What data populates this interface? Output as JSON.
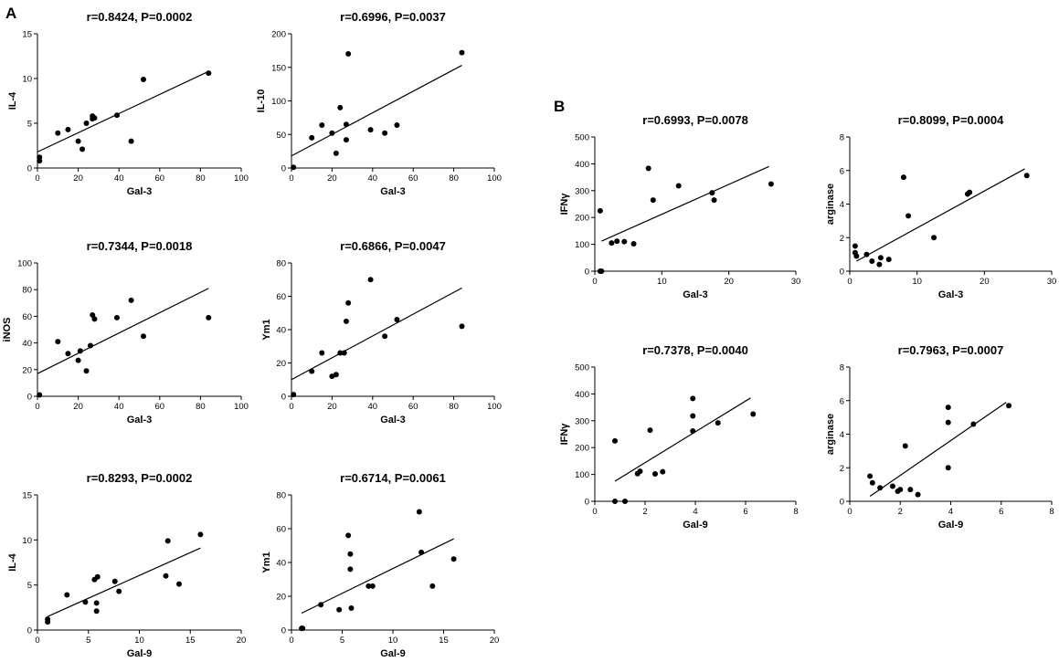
{
  "panels": [
    {
      "id": "panel-a",
      "letter": "A"
    },
    {
      "id": "panel-b",
      "letter": "B"
    }
  ],
  "chart_data": [
    {
      "id": "a1",
      "type": "scatter",
      "title": "r=0.8424, P=0.0002",
      "xlabel": "Gal-3",
      "ylabel": "IL-4",
      "xlim": [
        0,
        100
      ],
      "ylim": [
        0,
        15
      ],
      "xticks": [
        0,
        20,
        40,
        60,
        80,
        100
      ],
      "yticks": [
        0,
        5,
        10,
        15
      ],
      "points": [
        [
          1,
          1.2
        ],
        [
          1,
          0.8
        ],
        [
          10,
          3.9
        ],
        [
          15,
          4.3
        ],
        [
          20,
          3
        ],
        [
          22,
          2.1
        ],
        [
          24,
          5
        ],
        [
          27,
          5.5
        ],
        [
          27,
          5.8
        ],
        [
          28,
          5.6
        ],
        [
          39,
          5.9
        ],
        [
          46,
          3
        ],
        [
          52,
          9.9
        ],
        [
          84,
          10.6
        ]
      ],
      "fit": [
        [
          0,
          1.8
        ],
        [
          84,
          10.8
        ]
      ]
    },
    {
      "id": "a2",
      "type": "scatter",
      "title": "r=0.6996, P=0.0037",
      "xlabel": "Gal-3",
      "ylabel": "IL-10",
      "xlim": [
        0,
        100
      ],
      "ylim": [
        0,
        200
      ],
      "xticks": [
        0,
        20,
        40,
        60,
        80,
        100
      ],
      "yticks": [
        0,
        50,
        100,
        150,
        200
      ],
      "points": [
        [
          1,
          1
        ],
        [
          10,
          45
        ],
        [
          15,
          64
        ],
        [
          20,
          52
        ],
        [
          22,
          22
        ],
        [
          24,
          90
        ],
        [
          27,
          42
        ],
        [
          27,
          65
        ],
        [
          28,
          170
        ],
        [
          39,
          57
        ],
        [
          46,
          52
        ],
        [
          52,
          64
        ],
        [
          84,
          172
        ]
      ],
      "fit": [
        [
          0,
          18
        ],
        [
          84,
          153
        ]
      ]
    },
    {
      "id": "a3",
      "type": "scatter",
      "title": "r=0.7344, P=0.0018",
      "xlabel": "Gal-3",
      "ylabel": "iNOS",
      "xlim": [
        0,
        100
      ],
      "ylim": [
        0,
        100
      ],
      "xticks": [
        0,
        20,
        40,
        60,
        80,
        100
      ],
      "yticks": [
        0,
        20,
        40,
        60,
        80,
        100
      ],
      "points": [
        [
          1,
          1
        ],
        [
          10,
          41
        ],
        [
          15,
          32
        ],
        [
          20,
          27
        ],
        [
          21,
          34
        ],
        [
          24,
          19
        ],
        [
          26,
          38
        ],
        [
          27,
          61
        ],
        [
          28,
          58
        ],
        [
          39,
          59
        ],
        [
          46,
          72
        ],
        [
          52,
          45
        ],
        [
          84,
          59
        ]
      ],
      "fit": [
        [
          0,
          17
        ],
        [
          84,
          81
        ]
      ]
    },
    {
      "id": "a4",
      "type": "scatter",
      "title": "r=0.6866, P=0.0047",
      "xlabel": "Gal-3",
      "ylabel": "Ym1",
      "xlim": [
        0,
        100
      ],
      "ylim": [
        0,
        80
      ],
      "xticks": [
        0,
        20,
        40,
        60,
        80,
        100
      ],
      "yticks": [
        0,
        20,
        40,
        60,
        80
      ],
      "points": [
        [
          1,
          1
        ],
        [
          10,
          15
        ],
        [
          15,
          26
        ],
        [
          20,
          12
        ],
        [
          22,
          13
        ],
        [
          24,
          26
        ],
        [
          26,
          26
        ],
        [
          27,
          45
        ],
        [
          28,
          56
        ],
        [
          39,
          70
        ],
        [
          46,
          36
        ],
        [
          52,
          46
        ],
        [
          84,
          42
        ]
      ],
      "fit": [
        [
          0,
          10
        ],
        [
          84,
          65
        ]
      ]
    },
    {
      "id": "a5",
      "type": "scatter",
      "title": "r=0.8293, P=0.0002",
      "xlabel": "Gal-9",
      "ylabel": "IL-4",
      "xlim": [
        0,
        20
      ],
      "ylim": [
        0,
        15
      ],
      "xticks": [
        0,
        5,
        10,
        15,
        20
      ],
      "yticks": [
        0,
        5,
        10,
        15
      ],
      "points": [
        [
          1,
          0.9
        ],
        [
          1,
          1.2
        ],
        [
          2.9,
          3.9
        ],
        [
          4.7,
          3.1
        ],
        [
          5.6,
          5.6
        ],
        [
          5.8,
          3
        ],
        [
          5.8,
          2.1
        ],
        [
          5.9,
          5.9
        ],
        [
          7.6,
          5.4
        ],
        [
          8,
          4.3
        ],
        [
          12.6,
          6
        ],
        [
          12.8,
          9.9
        ],
        [
          13.9,
          5.1
        ],
        [
          16,
          10.6
        ]
      ],
      "fit": [
        [
          1,
          1.5
        ],
        [
          16,
          9.1
        ]
      ]
    },
    {
      "id": "a6",
      "type": "scatter",
      "title": "r=0.6714, P=0.0061",
      "xlabel": "Gal-9",
      "ylabel": "Ym1",
      "xlim": [
        0,
        20
      ],
      "ylim": [
        0,
        80
      ],
      "xticks": [
        0,
        5,
        10,
        15,
        20
      ],
      "yticks": [
        0,
        20,
        40,
        60,
        80
      ],
      "points": [
        [
          1,
          1
        ],
        [
          1.1,
          1
        ],
        [
          2.9,
          15
        ],
        [
          4.7,
          12
        ],
        [
          5.6,
          56
        ],
        [
          5.8,
          45
        ],
        [
          5.8,
          36
        ],
        [
          5.9,
          13
        ],
        [
          7.6,
          26
        ],
        [
          8,
          26
        ],
        [
          12.6,
          70
        ],
        [
          12.8,
          46
        ],
        [
          13.9,
          26
        ],
        [
          16,
          42
        ]
      ],
      "fit": [
        [
          1,
          10
        ],
        [
          16,
          54
        ]
      ]
    },
    {
      "id": "b1",
      "type": "scatter",
      "title": "r=0.6993, P=0.0078",
      "xlabel": "Gal-3",
      "ylabel": "IFNγ",
      "xlim": [
        0,
        30
      ],
      "ylim": [
        0,
        500
      ],
      "xticks": [
        0,
        10,
        20,
        30
      ],
      "yticks": [
        0,
        100,
        200,
        300,
        400,
        500
      ],
      "points": [
        [
          0.8,
          225
        ],
        [
          0.8,
          0
        ],
        [
          1,
          0
        ],
        [
          2.5,
          105
        ],
        [
          3.3,
          112
        ],
        [
          4.4,
          110
        ],
        [
          5.8,
          102
        ],
        [
          8,
          383
        ],
        [
          8.7,
          265
        ],
        [
          12.5,
          318
        ],
        [
          17.5,
          292
        ],
        [
          17.8,
          265
        ],
        [
          26.3,
          325
        ]
      ],
      "fit": [
        [
          1,
          112
        ],
        [
          26,
          390
        ]
      ]
    },
    {
      "id": "b2",
      "type": "scatter",
      "title": "r=0.8099, P=0.0004",
      "xlabel": "Gal-3",
      "ylabel": "arginase",
      "xlim": [
        0,
        30
      ],
      "ylim": [
        0,
        8
      ],
      "xticks": [
        0,
        10,
        20,
        30
      ],
      "yticks": [
        0,
        2,
        4,
        6,
        8
      ],
      "points": [
        [
          0.8,
          1.5
        ],
        [
          0.8,
          1.1
        ],
        [
          1,
          0.9
        ],
        [
          2.5,
          1
        ],
        [
          3.3,
          0.6
        ],
        [
          4.4,
          0.4
        ],
        [
          4.6,
          0.8
        ],
        [
          5.8,
          0.7
        ],
        [
          8,
          5.6
        ],
        [
          8.7,
          3.3
        ],
        [
          12.5,
          2
        ],
        [
          17.5,
          4.6
        ],
        [
          17.8,
          4.7
        ],
        [
          26.3,
          5.7
        ]
      ],
      "fit": [
        [
          1,
          0.6
        ],
        [
          26,
          6.1
        ]
      ]
    },
    {
      "id": "b3",
      "type": "scatter",
      "title": "r=0.7378, P=0.0040",
      "xlabel": "Gal-9",
      "ylabel": "IFNγ",
      "xlim": [
        0,
        8
      ],
      "ylim": [
        0,
        500
      ],
      "xticks": [
        0,
        2,
        4,
        6,
        8
      ],
      "yticks": [
        0,
        100,
        200,
        300,
        400,
        500
      ],
      "points": [
        [
          0.8,
          225
        ],
        [
          0.8,
          0
        ],
        [
          1.2,
          0
        ],
        [
          1.7,
          103
        ],
        [
          1.8,
          112
        ],
        [
          2.2,
          265
        ],
        [
          2.4,
          102
        ],
        [
          2.7,
          110
        ],
        [
          3.9,
          383
        ],
        [
          3.9,
          318
        ],
        [
          3.9,
          262
        ],
        [
          4.9,
          292
        ],
        [
          6.3,
          325
        ]
      ],
      "fit": [
        [
          0.8,
          75
        ],
        [
          6.2,
          385
        ]
      ]
    },
    {
      "id": "b4",
      "type": "scatter",
      "title": "r=0.7963, P=0.0007",
      "xlabel": "Gal-9",
      "ylabel": "arginase",
      "xlim": [
        0,
        8
      ],
      "ylim": [
        0,
        8
      ],
      "xticks": [
        0,
        2,
        4,
        6,
        8
      ],
      "yticks": [
        0,
        2,
        4,
        6,
        8
      ],
      "points": [
        [
          0.8,
          1.5
        ],
        [
          0.9,
          1.1
        ],
        [
          1.2,
          0.8
        ],
        [
          1.7,
          0.9
        ],
        [
          1.9,
          0.6
        ],
        [
          2,
          0.7
        ],
        [
          2.2,
          3.3
        ],
        [
          2.4,
          0.7
        ],
        [
          2.7,
          0.4
        ],
        [
          3.9,
          5.6
        ],
        [
          3.9,
          4.7
        ],
        [
          3.9,
          2
        ],
        [
          4.9,
          4.6
        ],
        [
          6.3,
          5.7
        ]
      ],
      "fit": [
        [
          0.8,
          0.3
        ],
        [
          6.2,
          5.9
        ]
      ]
    }
  ]
}
